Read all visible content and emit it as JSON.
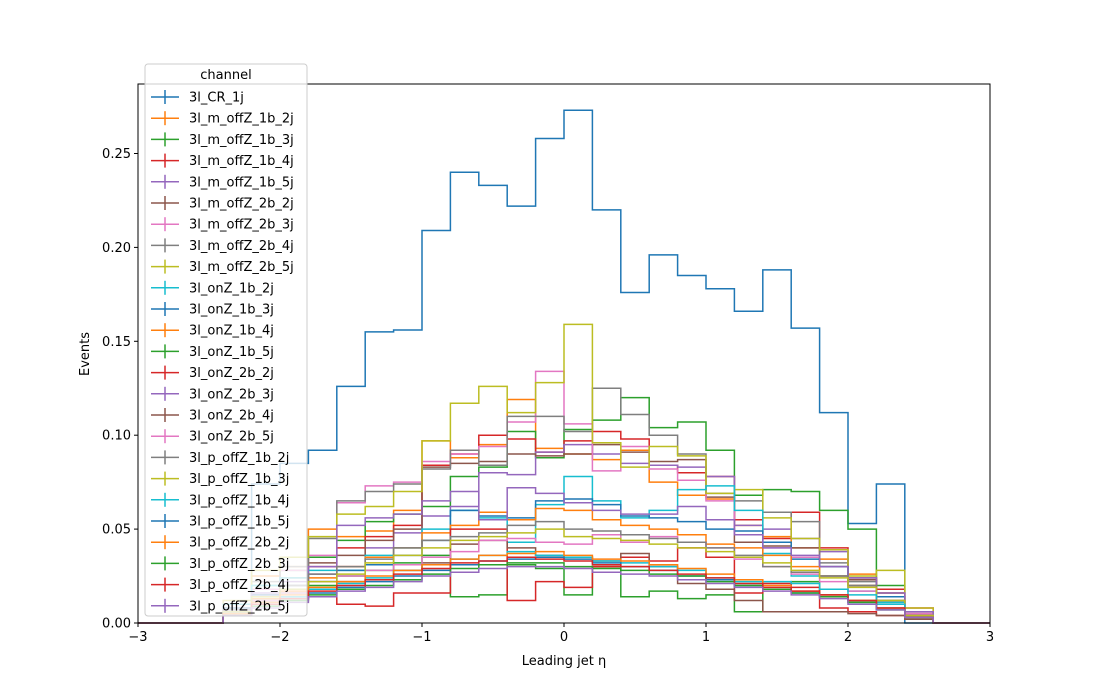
{
  "chart_data": {
    "type": "step-histogram",
    "xlabel": "Leading jet  η",
    "ylabel": "Events",
    "xlim": [
      -3,
      3
    ],
    "ylim": [
      0,
      0.287
    ],
    "bin_edges": [
      -3.0,
      -2.8,
      -2.6,
      -2.4,
      -2.2,
      -2.0,
      -1.8,
      -1.6,
      -1.4,
      -1.2,
      -1.0,
      -0.8,
      -0.6,
      -0.4,
      -0.2,
      0.0,
      0.2,
      0.4,
      0.6,
      0.8,
      1.0,
      1.2,
      1.4,
      1.6,
      1.8,
      2.0,
      2.2,
      2.4,
      2.6,
      2.8,
      3.0
    ],
    "x_ticks": [
      -3,
      -2,
      -1,
      0,
      1,
      2,
      3
    ],
    "x_tick_labels": [
      "−3",
      "−2",
      "−1",
      "0",
      "1",
      "2",
      "3"
    ],
    "y_ticks": [
      0.0,
      0.05,
      0.1,
      0.15,
      0.2,
      0.25
    ],
    "y_tick_labels": [
      "0.00",
      "0.05",
      "0.10",
      "0.15",
      "0.20",
      "0.25"
    ],
    "legend": {
      "title": "channel",
      "placement": "upper-left-outside"
    },
    "series": [
      {
        "name": "3l_CR_1j",
        "color": "#1f77b4",
        "values": [
          0,
          0,
          0,
          0.006,
          0.074,
          0.085,
          0.092,
          0.126,
          0.155,
          0.156,
          0.209,
          0.24,
          0.233,
          0.222,
          0.258,
          0.273,
          0.22,
          0.176,
          0.196,
          0.185,
          0.178,
          0.166,
          0.188,
          0.157,
          0.112,
          0.053,
          0.074,
          0,
          0,
          0
        ]
      },
      {
        "name": "3l_m_offZ_1b_2j",
        "color": "#ff7f0e",
        "values": [
          0,
          0,
          0,
          0.01,
          0.025,
          0.03,
          0.05,
          0.046,
          0.049,
          0.06,
          0.097,
          0.088,
          0.095,
          0.119,
          0.093,
          0.09,
          0.087,
          0.092,
          0.075,
          0.068,
          0.066,
          0.052,
          0.046,
          0.04,
          0.034,
          0.026,
          0.016,
          0.005,
          0,
          0
        ]
      },
      {
        "name": "3l_m_offZ_1b_3j",
        "color": "#2ca02c",
        "values": [
          0,
          0,
          0,
          0.008,
          0.02,
          0.028,
          0.035,
          0.044,
          0.054,
          0.058,
          0.062,
          0.078,
          0.083,
          0.102,
          0.088,
          0.103,
          0.108,
          0.12,
          0.104,
          0.107,
          0.092,
          0.068,
          0.071,
          0.07,
          0.06,
          0.05,
          0.02,
          0.006,
          0,
          0
        ]
      },
      {
        "name": "3l_m_offZ_1b_4j",
        "color": "#d62728",
        "values": [
          0,
          0,
          0,
          0.006,
          0.015,
          0.024,
          0.03,
          0.04,
          0.046,
          0.052,
          0.084,
          0.09,
          0.1,
          0.098,
          0.091,
          0.097,
          0.102,
          0.098,
          0.084,
          0.08,
          0.078,
          0.055,
          0.045,
          0.059,
          0.04,
          0.024,
          0.018,
          0.008,
          0,
          0
        ]
      },
      {
        "name": "3l_m_offZ_1b_5j",
        "color": "#9467bd",
        "values": [
          0,
          0,
          0,
          0.005,
          0.012,
          0.018,
          0.026,
          0.03,
          0.04,
          0.048,
          0.057,
          0.062,
          0.08,
          0.079,
          0.091,
          0.095,
          0.09,
          0.085,
          0.084,
          0.083,
          0.078,
          0.052,
          0.05,
          0.045,
          0.038,
          0.024,
          0.014,
          0.005,
          0,
          0
        ]
      },
      {
        "name": "3l_m_offZ_2b_2j",
        "color": "#8c564b",
        "values": [
          0,
          0,
          0,
          0.006,
          0.014,
          0.02,
          0.032,
          0.036,
          0.044,
          0.05,
          0.083,
          0.085,
          0.086,
          0.09,
          0.089,
          0.09,
          0.095,
          0.091,
          0.086,
          0.087,
          0.067,
          0.043,
          0.041,
          0.04,
          0.03,
          0.023,
          0.016,
          0.006,
          0,
          0
        ]
      },
      {
        "name": "3l_m_offZ_2b_3j",
        "color": "#e377c2",
        "values": [
          0,
          0,
          0,
          0.008,
          0.018,
          0.028,
          0.036,
          0.064,
          0.073,
          0.075,
          0.086,
          0.09,
          0.094,
          0.107,
          0.134,
          0.106,
          0.081,
          0.094,
          0.082,
          0.076,
          0.065,
          0.047,
          0.04,
          0.035,
          0.025,
          0.02,
          0.011,
          0.005,
          0,
          0
        ]
      },
      {
        "name": "3l_m_offZ_2b_4j",
        "color": "#7f7f7f",
        "values": [
          0,
          0,
          0,
          0.01,
          0.022,
          0.03,
          0.045,
          0.065,
          0.07,
          0.074,
          0.082,
          0.092,
          0.084,
          0.11,
          0.11,
          0.102,
          0.125,
          0.111,
          0.1,
          0.09,
          0.069,
          0.065,
          0.059,
          0.054,
          0.032,
          0.022,
          0.012,
          0.006,
          0,
          0
        ]
      },
      {
        "name": "3l_m_offZ_2b_5j",
        "color": "#bcbd22",
        "values": [
          0,
          0,
          0,
          0.012,
          0.028,
          0.035,
          0.046,
          0.058,
          0.062,
          0.07,
          0.097,
          0.117,
          0.126,
          0.112,
          0.128,
          0.159,
          0.096,
          0.083,
          0.094,
          0.089,
          0.069,
          0.071,
          0.056,
          0.045,
          0.039,
          0.025,
          0.028,
          0.008,
          0,
          0
        ]
      },
      {
        "name": "3l_onZ_1b_2j",
        "color": "#17becf",
        "values": [
          0,
          0,
          0,
          0.01,
          0.02,
          0.024,
          0.028,
          0.028,
          0.036,
          0.04,
          0.05,
          0.06,
          0.056,
          0.043,
          0.063,
          0.078,
          0.065,
          0.056,
          0.06,
          0.071,
          0.073,
          0.06,
          0.037,
          0.025,
          0.025,
          0.017,
          0.011,
          0.004,
          0,
          0
        ]
      },
      {
        "name": "3l_onZ_1b_3j",
        "color": "#1f77b4",
        "values": [
          0,
          0,
          0,
          0.008,
          0.015,
          0.02,
          0.022,
          0.028,
          0.031,
          0.036,
          0.044,
          0.06,
          0.057,
          0.056,
          0.065,
          0.066,
          0.063,
          0.057,
          0.056,
          0.054,
          0.05,
          0.049,
          0.043,
          0.034,
          0.03,
          0.02,
          0.014,
          0.004,
          0,
          0
        ]
      },
      {
        "name": "3l_onZ_1b_4j",
        "color": "#ff7f0e",
        "values": [
          0,
          0,
          0,
          0.006,
          0.013,
          0.017,
          0.024,
          0.03,
          0.035,
          0.04,
          0.048,
          0.052,
          0.059,
          0.055,
          0.061,
          0.06,
          0.055,
          0.052,
          0.05,
          0.047,
          0.042,
          0.04,
          0.036,
          0.03,
          0.025,
          0.02,
          0.012,
          0.004,
          0,
          0
        ]
      },
      {
        "name": "3l_onZ_1b_5j",
        "color": "#2ca02c",
        "values": [
          0,
          0,
          0,
          0.006,
          0.012,
          0.016,
          0.02,
          0.025,
          0.028,
          0.032,
          0.036,
          0.014,
          0.015,
          0.031,
          0.029,
          0.015,
          0.03,
          0.014,
          0.017,
          0.013,
          0.015,
          0.006,
          0.018,
          0.022,
          0.015,
          0.012,
          0.01,
          0.004,
          0,
          0
        ]
      },
      {
        "name": "3l_onZ_2b_2j",
        "color": "#d62728",
        "values": [
          0,
          0,
          0,
          0.005,
          0.01,
          0.014,
          0.018,
          0.01,
          0.009,
          0.016,
          0.016,
          0.05,
          0.05,
          0.012,
          0.022,
          0.019,
          0.03,
          0.035,
          0.033,
          0.04,
          0.035,
          0.016,
          0.021,
          0.019,
          0.008,
          0.006,
          0.004,
          0.002,
          0,
          0
        ]
      },
      {
        "name": "3l_onZ_2b_3j",
        "color": "#9467bd",
        "values": [
          0,
          0,
          0,
          0.007,
          0.016,
          0.022,
          0.03,
          0.052,
          0.056,
          0.058,
          0.065,
          0.07,
          0.055,
          0.072,
          0.069,
          0.064,
          0.06,
          0.058,
          0.058,
          0.062,
          0.055,
          0.047,
          0.04,
          0.036,
          0.03,
          0.024,
          0.016,
          0.006,
          0,
          0
        ]
      },
      {
        "name": "3l_onZ_2b_4j",
        "color": "#8c564b",
        "values": [
          0,
          0,
          0,
          0.005,
          0.01,
          0.014,
          0.018,
          0.022,
          0.023,
          0.028,
          0.032,
          0.042,
          0.044,
          0.04,
          0.036,
          0.035,
          0.033,
          0.037,
          0.03,
          0.021,
          0.018,
          0.012,
          0.006,
          0.006,
          0.006,
          0.005,
          0.004,
          0.002,
          0,
          0
        ]
      },
      {
        "name": "3l_onZ_2b_5j",
        "color": "#e377c2",
        "values": [
          0,
          0,
          0,
          0.006,
          0.012,
          0.016,
          0.022,
          0.025,
          0.028,
          0.031,
          0.035,
          0.038,
          0.044,
          0.045,
          0.043,
          0.042,
          0.047,
          0.043,
          0.046,
          0.043,
          0.04,
          0.034,
          0.03,
          0.026,
          0.022,
          0.017,
          0.01,
          0.004,
          0,
          0
        ]
      },
      {
        "name": "3l_p_offZ_1b_2j",
        "color": "#7f7f7f",
        "values": [
          0,
          0,
          0,
          0.007,
          0.014,
          0.02,
          0.026,
          0.03,
          0.034,
          0.04,
          0.044,
          0.046,
          0.048,
          0.052,
          0.054,
          0.05,
          0.049,
          0.047,
          0.045,
          0.043,
          0.04,
          0.036,
          0.03,
          0.027,
          0.025,
          0.02,
          0.012,
          0.004,
          0,
          0
        ]
      },
      {
        "name": "3l_p_offZ_1b_3j",
        "color": "#bcbd22",
        "values": [
          0,
          0,
          0,
          0.006,
          0.014,
          0.018,
          0.022,
          0.026,
          0.032,
          0.036,
          0.04,
          0.044,
          0.046,
          0.048,
          0.05,
          0.046,
          0.045,
          0.044,
          0.042,
          0.04,
          0.038,
          0.035,
          0.032,
          0.028,
          0.024,
          0.019,
          0.012,
          0.004,
          0,
          0
        ]
      },
      {
        "name": "3l_p_offZ_1b_4j",
        "color": "#17becf",
        "values": [
          0,
          0,
          0,
          0.005,
          0.01,
          0.014,
          0.018,
          0.021,
          0.024,
          0.028,
          0.031,
          0.034,
          0.036,
          0.038,
          0.036,
          0.035,
          0.033,
          0.032,
          0.03,
          0.028,
          0.024,
          0.022,
          0.022,
          0.021,
          0.018,
          0.015,
          0.01,
          0.003,
          0,
          0
        ]
      },
      {
        "name": "3l_p_offZ_1b_5j",
        "color": "#1f77b4",
        "values": [
          0,
          0,
          0,
          0.005,
          0.01,
          0.013,
          0.016,
          0.019,
          0.022,
          0.025,
          0.028,
          0.031,
          0.033,
          0.034,
          0.035,
          0.034,
          0.032,
          0.03,
          0.028,
          0.025,
          0.023,
          0.02,
          0.018,
          0.016,
          0.014,
          0.011,
          0.008,
          0.003,
          0,
          0
        ]
      },
      {
        "name": "3l_p_offZ_2b_2j",
        "color": "#ff7f0e",
        "values": [
          0,
          0,
          0,
          0.005,
          0.011,
          0.015,
          0.019,
          0.022,
          0.025,
          0.028,
          0.031,
          0.034,
          0.036,
          0.037,
          0.038,
          0.036,
          0.034,
          0.033,
          0.031,
          0.029,
          0.026,
          0.023,
          0.02,
          0.017,
          0.015,
          0.012,
          0.008,
          0.003,
          0,
          0
        ]
      },
      {
        "name": "3l_p_offZ_2b_3j",
        "color": "#2ca02c",
        "values": [
          0,
          0,
          0,
          0.004,
          0.009,
          0.012,
          0.015,
          0.018,
          0.02,
          0.023,
          0.026,
          0.029,
          0.031,
          0.032,
          0.032,
          0.03,
          0.029,
          0.028,
          0.026,
          0.025,
          0.022,
          0.02,
          0.018,
          0.016,
          0.014,
          0.011,
          0.007,
          0.003,
          0,
          0
        ]
      },
      {
        "name": "3l_p_offZ_2b_4j",
        "color": "#d62728",
        "values": [
          0,
          0,
          0,
          0.004,
          0.01,
          0.013,
          0.017,
          0.02,
          0.023,
          0.026,
          0.029,
          0.032,
          0.033,
          0.035,
          0.034,
          0.033,
          0.031,
          0.03,
          0.028,
          0.026,
          0.024,
          0.021,
          0.019,
          0.017,
          0.015,
          0.012,
          0.008,
          0.003,
          0,
          0
        ]
      },
      {
        "name": "3l_p_offZ_2b_5j",
        "color": "#9467bd",
        "values": [
          0,
          0,
          0,
          0.004,
          0.008,
          0.011,
          0.014,
          0.017,
          0.019,
          0.022,
          0.025,
          0.027,
          0.029,
          0.03,
          0.03,
          0.029,
          0.027,
          0.026,
          0.025,
          0.023,
          0.021,
          0.019,
          0.017,
          0.015,
          0.013,
          0.01,
          0.007,
          0.003,
          0,
          0
        ]
      }
    ]
  }
}
